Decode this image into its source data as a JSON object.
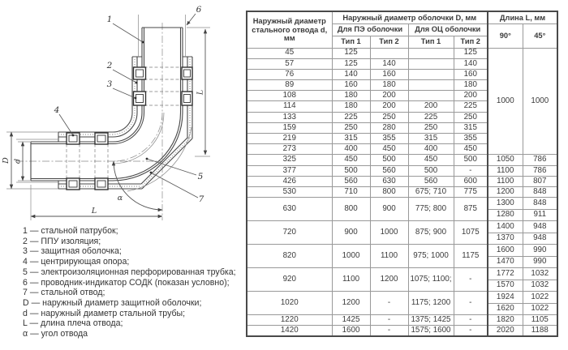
{
  "diagram": {
    "callouts": [
      "1",
      "2",
      "3",
      "4",
      "5",
      "6",
      "7"
    ],
    "dims": {
      "D": "D",
      "d": "d",
      "L_bottom": "L",
      "L_right": "L",
      "alpha": "α"
    },
    "legend": [
      "1 — стальной патрубок;",
      "2 — ППУ изоляция;",
      "3 — защитная оболочка;",
      "4 — центрирующая опора;",
      "5 — электроизоляционная перфорированная трубка;",
      "6 — проводник-индикатор СОДК (показан условно);",
      "7 — стальной отвод;",
      "D — наружный диаметр защитной оболочки;",
      "d — наружный диаметр стальной трубы;",
      "L — длина плеча отвода;",
      "α — угол отвода"
    ]
  },
  "table": {
    "header": {
      "col_d": "Наружный диаметр стального отвода d, мм",
      "group_D": "Наружный диаметр оболочки D, мм",
      "group_L": "Длина L, мм",
      "pe": "Для ПЭ оболочки",
      "oc": "Для ОЦ оболочки",
      "type1": "Тип 1",
      "type2": "Тип 2",
      "deg90": "90°",
      "deg45": "45°"
    },
    "shared_L": {
      "l90": "1000",
      "l45": "1000",
      "span": 10
    },
    "rows": [
      {
        "d": "45",
        "pe1": "125",
        "pe2": "",
        "oc1": "",
        "oc2": "125"
      },
      {
        "d": "57",
        "pe1": "125",
        "pe2": "140",
        "oc1": "",
        "oc2": "140"
      },
      {
        "d": "76",
        "pe1": "140",
        "pe2": "160",
        "oc1": "",
        "oc2": "160"
      },
      {
        "d": "89",
        "pe1": "160",
        "pe2": "180",
        "oc1": "",
        "oc2": "180"
      },
      {
        "d": "108",
        "pe1": "180",
        "pe2": "200",
        "oc1": "",
        "oc2": "200"
      },
      {
        "d": "114",
        "pe1": "180",
        "pe2": "200",
        "oc1": "200",
        "oc2": "225"
      },
      {
        "d": "133",
        "pe1": "225",
        "pe2": "250",
        "oc1": "225",
        "oc2": "250"
      },
      {
        "d": "159",
        "pe1": "250",
        "pe2": "280",
        "oc1": "250",
        "oc2": "315"
      },
      {
        "d": "219",
        "pe1": "315",
        "pe2": "355",
        "oc1": "315",
        "oc2": "355"
      },
      {
        "d": "273",
        "pe1": "400",
        "pe2": "450",
        "oc1": "400",
        "oc2": "450"
      },
      {
        "d": "325",
        "pe1": "450",
        "pe2": "500",
        "oc1": "450",
        "oc2": "500",
        "L": [
          [
            "1050",
            "786"
          ]
        ]
      },
      {
        "d": "377",
        "pe1": "500",
        "pe2": "560",
        "oc1": "500",
        "oc2": "-",
        "L": [
          [
            "1100",
            "786"
          ]
        ]
      },
      {
        "d": "426",
        "pe1": "560",
        "pe2": "630",
        "oc1": "560",
        "oc2": "600",
        "L": [
          [
            "1100",
            "807"
          ]
        ]
      },
      {
        "d": "530",
        "pe1": "710",
        "pe2": "800",
        "oc1": "675; 710",
        "oc2": "775",
        "L": [
          [
            "1200",
            "848"
          ]
        ]
      },
      {
        "d": "630",
        "pe1": "800",
        "pe2": "900",
        "oc1": "775; 800",
        "oc2": "875",
        "L": [
          [
            "1300",
            "848"
          ],
          [
            "1280",
            "911"
          ]
        ]
      },
      {
        "d": "720",
        "pe1": "900",
        "pe2": "1000",
        "oc1": "875; 900",
        "oc2": "1075",
        "L": [
          [
            "1400",
            "948"
          ],
          [
            "1370",
            "948"
          ]
        ]
      },
      {
        "d": "820",
        "pe1": "1000",
        "pe2": "1100",
        "oc1": "975; 1000",
        "oc2": "1175",
        "L": [
          [
            "1600",
            "990"
          ],
          [
            "1470",
            "990"
          ]
        ]
      },
      {
        "d": "920",
        "pe1": "1100",
        "pe2": "1200",
        "oc1": "1075; 1100;",
        "oc2": "-",
        "L": [
          [
            "1772",
            "1032"
          ],
          [
            "1570",
            "1032"
          ]
        ]
      },
      {
        "d": "1020",
        "pe1": "1200",
        "pe2": "-",
        "oc1": "1175; 1200",
        "oc2": "-",
        "L": [
          [
            "1924",
            "1022"
          ],
          [
            "1620",
            "1022"
          ]
        ]
      },
      {
        "d": "1220",
        "pe1": "1425",
        "pe2": "-",
        "oc1": "1375; 1425",
        "oc2": "-",
        "L": [
          [
            "1820",
            "1105"
          ]
        ]
      },
      {
        "d": "1420",
        "pe1": "1600",
        "pe2": "-",
        "oc1": "1575; 1600",
        "oc2": "-",
        "L": [
          [
            "2020",
            "1188"
          ]
        ]
      }
    ]
  }
}
